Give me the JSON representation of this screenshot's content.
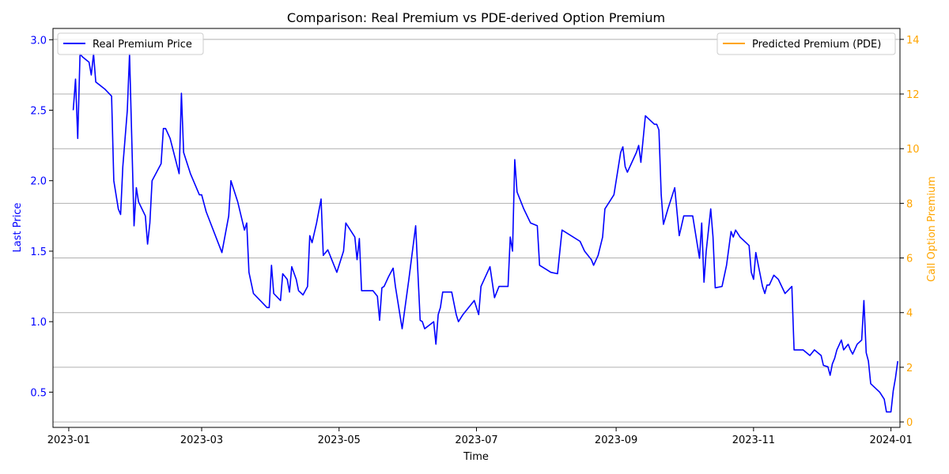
{
  "chart_data": {
    "type": "line",
    "title": "Comparison: Real Premium vs PDE-derived Option Premium",
    "xlabel": "Time",
    "ylabel_left": "Last Price",
    "ylabel_right": "Call Option Premium",
    "x_ticks": [
      "2023-01",
      "2023-03",
      "2023-05",
      "2023-07",
      "2023-09",
      "2023-11",
      "2024-01"
    ],
    "y_left_ticks": [
      "0.5",
      "1.0",
      "1.5",
      "2.0",
      "2.5",
      "3.0"
    ],
    "y_right_ticks": [
      "0",
      "2",
      "4",
      "6",
      "8",
      "10",
      "12",
      "14"
    ],
    "xlim": [
      "2022-12-25",
      "2024-01-05"
    ],
    "ylim_left": [
      0.25,
      3.08
    ],
    "ylim_right": [
      -0.2,
      14.4
    ],
    "grid": "horizontal lines at right-axis ticks",
    "legend_left_position": "upper-left",
    "legend_right_position": "upper-right",
    "colors": {
      "real": "#0000ff",
      "predicted": "#ffa500",
      "left_axis": "#0000ff",
      "right_axis": "#ffa500"
    },
    "series": [
      {
        "name": "Real Premium Price",
        "axis": "left",
        "points": [
          [
            "2023-01-03",
            2.5
          ],
          [
            "2023-01-04",
            2.72
          ],
          [
            "2023-01-05",
            2.3
          ],
          [
            "2023-01-06",
            2.9
          ],
          [
            "2023-01-07",
            2.88
          ],
          [
            "2023-01-10",
            2.84
          ],
          [
            "2023-01-11",
            2.75
          ],
          [
            "2023-01-12",
            2.9
          ],
          [
            "2023-01-13",
            2.7
          ],
          [
            "2023-01-17",
            2.65
          ],
          [
            "2023-01-20",
            2.6
          ],
          [
            "2023-01-21",
            2.0
          ],
          [
            "2023-01-23",
            1.8
          ],
          [
            "2023-01-24",
            1.76
          ],
          [
            "2023-01-25",
            2.1
          ],
          [
            "2023-01-27",
            2.5
          ],
          [
            "2023-01-28",
            2.9
          ],
          [
            "2023-01-30",
            1.68
          ],
          [
            "2023-01-31",
            1.95
          ],
          [
            "2023-02-01",
            1.85
          ],
          [
            "2023-02-04",
            1.75
          ],
          [
            "2023-02-05",
            1.55
          ],
          [
            "2023-02-06",
            1.7
          ],
          [
            "2023-02-07",
            2.0
          ],
          [
            "2023-02-11",
            2.12
          ],
          [
            "2023-02-12",
            2.37
          ],
          [
            "2023-02-13",
            2.37
          ],
          [
            "2023-02-15",
            2.3
          ],
          [
            "2023-02-19",
            2.05
          ],
          [
            "2023-02-20",
            2.62
          ],
          [
            "2023-02-21",
            2.2
          ],
          [
            "2023-02-24",
            2.05
          ],
          [
            "2023-02-28",
            1.9
          ],
          [
            "2023-03-01",
            1.9
          ],
          [
            "2023-03-03",
            1.78
          ],
          [
            "2023-03-10",
            1.49
          ],
          [
            "2023-03-13",
            1.75
          ],
          [
            "2023-03-14",
            2.0
          ],
          [
            "2023-03-17",
            1.85
          ],
          [
            "2023-03-20",
            1.65
          ],
          [
            "2023-03-21",
            1.7
          ],
          [
            "2023-03-22",
            1.35
          ],
          [
            "2023-03-24",
            1.2
          ],
          [
            "2023-03-27",
            1.15
          ],
          [
            "2023-03-30",
            1.1
          ],
          [
            "2023-03-31",
            1.1
          ],
          [
            "2023-04-01",
            1.4
          ],
          [
            "2023-04-02",
            1.2
          ],
          [
            "2023-04-05",
            1.15
          ],
          [
            "2023-04-06",
            1.34
          ],
          [
            "2023-04-08",
            1.3
          ],
          [
            "2023-04-09",
            1.21
          ],
          [
            "2023-04-10",
            1.39
          ],
          [
            "2023-04-12",
            1.3
          ],
          [
            "2023-04-13",
            1.22
          ],
          [
            "2023-04-15",
            1.19
          ],
          [
            "2023-04-17",
            1.25
          ],
          [
            "2023-04-18",
            1.61
          ],
          [
            "2023-04-19",
            1.56
          ],
          [
            "2023-04-21",
            1.7
          ],
          [
            "2023-04-23",
            1.87
          ],
          [
            "2023-04-24",
            1.47
          ],
          [
            "2023-04-26",
            1.51
          ],
          [
            "2023-04-30",
            1.35
          ],
          [
            "2023-05-03",
            1.5
          ],
          [
            "2023-05-04",
            1.7
          ],
          [
            "2023-05-06",
            1.65
          ],
          [
            "2023-05-08",
            1.6
          ],
          [
            "2023-05-09",
            1.44
          ],
          [
            "2023-05-10",
            1.59
          ],
          [
            "2023-05-11",
            1.22
          ],
          [
            "2023-05-16",
            1.22
          ],
          [
            "2023-05-18",
            1.18
          ],
          [
            "2023-05-19",
            1.01
          ],
          [
            "2023-05-20",
            1.24
          ],
          [
            "2023-05-21",
            1.25
          ],
          [
            "2023-05-23",
            1.32
          ],
          [
            "2023-05-25",
            1.38
          ],
          [
            "2023-05-26",
            1.25
          ],
          [
            "2023-05-29",
            0.95
          ],
          [
            "2023-06-01",
            1.3
          ],
          [
            "2023-06-04",
            1.68
          ],
          [
            "2023-06-06",
            1.01
          ],
          [
            "2023-06-07",
            1.0
          ],
          [
            "2023-06-08",
            0.95
          ],
          [
            "2023-06-12",
            1.0
          ],
          [
            "2023-06-13",
            0.84
          ],
          [
            "2023-06-14",
            1.05
          ],
          [
            "2023-06-15",
            1.1
          ],
          [
            "2023-06-16",
            1.21
          ],
          [
            "2023-06-20",
            1.21
          ],
          [
            "2023-06-22",
            1.05
          ],
          [
            "2023-06-23",
            1.0
          ],
          [
            "2023-06-25",
            1.05
          ],
          [
            "2023-06-30",
            1.15
          ],
          [
            "2023-07-02",
            1.05
          ],
          [
            "2023-07-03",
            1.25
          ],
          [
            "2023-07-07",
            1.39
          ],
          [
            "2023-07-09",
            1.17
          ],
          [
            "2023-07-11",
            1.25
          ],
          [
            "2023-07-15",
            1.25
          ],
          [
            "2023-07-16",
            1.6
          ],
          [
            "2023-07-17",
            1.5
          ],
          [
            "2023-07-18",
            2.15
          ],
          [
            "2023-07-19",
            1.92
          ],
          [
            "2023-07-22",
            1.8
          ],
          [
            "2023-07-25",
            1.7
          ],
          [
            "2023-07-28",
            1.68
          ],
          [
            "2023-07-29",
            1.4
          ],
          [
            "2023-08-01",
            1.37
          ],
          [
            "2023-08-03",
            1.35
          ],
          [
            "2023-08-06",
            1.34
          ],
          [
            "2023-08-08",
            1.65
          ],
          [
            "2023-08-16",
            1.57
          ],
          [
            "2023-08-18",
            1.5
          ],
          [
            "2023-08-21",
            1.44
          ],
          [
            "2023-08-22",
            1.4
          ],
          [
            "2023-08-24",
            1.47
          ],
          [
            "2023-08-26",
            1.6
          ],
          [
            "2023-08-27",
            1.8
          ],
          [
            "2023-08-31",
            1.9
          ],
          [
            "2023-09-03",
            2.2
          ],
          [
            "2023-09-04",
            2.24
          ],
          [
            "2023-09-05",
            2.1
          ],
          [
            "2023-09-06",
            2.06
          ],
          [
            "2023-09-10",
            2.2
          ],
          [
            "2023-09-11",
            2.25
          ],
          [
            "2023-09-12",
            2.13
          ],
          [
            "2023-09-14",
            2.46
          ],
          [
            "2023-09-18",
            2.4
          ],
          [
            "2023-09-19",
            2.4
          ],
          [
            "2023-09-20",
            2.36
          ],
          [
            "2023-09-21",
            1.9
          ],
          [
            "2023-09-22",
            1.69
          ],
          [
            "2023-09-24",
            1.8
          ],
          [
            "2023-09-27",
            1.95
          ],
          [
            "2023-09-29",
            1.61
          ],
          [
            "2023-10-01",
            1.75
          ],
          [
            "2023-10-05",
            1.75
          ],
          [
            "2023-10-08",
            1.45
          ],
          [
            "2023-10-09",
            1.7
          ],
          [
            "2023-10-10",
            1.28
          ],
          [
            "2023-10-11",
            1.5
          ],
          [
            "2023-10-13",
            1.8
          ],
          [
            "2023-10-14",
            1.6
          ],
          [
            "2023-10-15",
            1.24
          ],
          [
            "2023-10-18",
            1.25
          ],
          [
            "2023-10-20",
            1.4
          ],
          [
            "2023-10-22",
            1.64
          ],
          [
            "2023-10-23",
            1.6
          ],
          [
            "2023-10-24",
            1.65
          ],
          [
            "2023-10-26",
            1.6
          ],
          [
            "2023-10-30",
            1.54
          ],
          [
            "2023-10-31",
            1.35
          ],
          [
            "2023-11-01",
            1.3
          ],
          [
            "2023-11-02",
            1.49
          ],
          [
            "2023-11-05",
            1.25
          ],
          [
            "2023-11-06",
            1.2
          ],
          [
            "2023-11-07",
            1.26
          ],
          [
            "2023-11-08",
            1.26
          ],
          [
            "2023-11-10",
            1.33
          ],
          [
            "2023-11-12",
            1.3
          ],
          [
            "2023-11-15",
            1.2
          ],
          [
            "2023-11-18",
            1.25
          ],
          [
            "2023-11-19",
            0.8
          ],
          [
            "2023-11-23",
            0.8
          ],
          [
            "2023-11-26",
            0.76
          ],
          [
            "2023-11-28",
            0.8
          ],
          [
            "2023-12-01",
            0.76
          ],
          [
            "2023-12-02",
            0.69
          ],
          [
            "2023-12-04",
            0.68
          ],
          [
            "2023-12-05",
            0.62
          ],
          [
            "2023-12-06",
            0.7
          ],
          [
            "2023-12-07",
            0.74
          ],
          [
            "2023-12-08",
            0.8
          ],
          [
            "2023-12-10",
            0.87
          ],
          [
            "2023-12-11",
            0.8
          ],
          [
            "2023-12-13",
            0.84
          ],
          [
            "2023-12-14",
            0.8
          ],
          [
            "2023-12-15",
            0.77
          ],
          [
            "2023-12-17",
            0.84
          ],
          [
            "2023-12-19",
            0.87
          ],
          [
            "2023-12-20",
            1.15
          ],
          [
            "2023-12-21",
            0.78
          ],
          [
            "2023-12-22",
            0.72
          ],
          [
            "2023-12-23",
            0.56
          ],
          [
            "2023-12-27",
            0.5
          ],
          [
            "2023-12-29",
            0.45
          ],
          [
            "2023-12-30",
            0.36
          ],
          [
            "2024-01-01",
            0.36
          ],
          [
            "2024-01-02",
            0.51
          ],
          [
            "2024-01-03",
            0.6
          ],
          [
            "2024-01-04",
            0.72
          ]
        ]
      },
      {
        "name": "Predicted Premium (PDE)",
        "axis": "right",
        "points": []
      }
    ]
  },
  "chart_data_note": ""
}
